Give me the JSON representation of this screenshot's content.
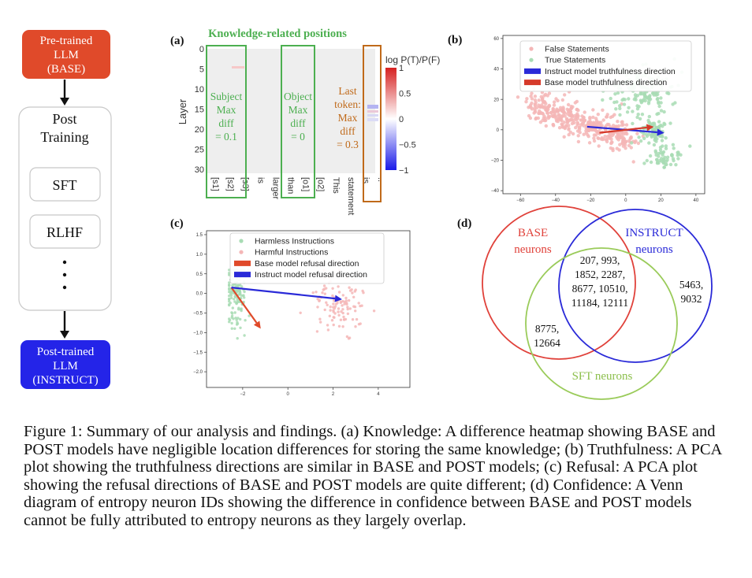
{
  "flow": {
    "pretrained": [
      "Pre-trained",
      "LLM",
      "(BASE)"
    ],
    "post_training": [
      "Post",
      "Training"
    ],
    "sft": "SFT",
    "rlhf": "RLHF",
    "posttrained": [
      "Post-trained",
      "LLM",
      "(INSTRUCT)"
    ],
    "colors": {
      "red": "#e04a2a",
      "blue": "#2424e8"
    }
  },
  "panel_a": {
    "label": "(a)",
    "title": "Knowledge-related positions",
    "ylabel": "Layer",
    "yticks": [
      "0",
      "5",
      "10",
      "15",
      "20",
      "25",
      "30"
    ],
    "xticks": [
      "[s1]",
      "[s2]",
      "[s3]",
      "is",
      "larger",
      "than",
      "[o1]",
      "[o2]",
      "This",
      "statement",
      "is",
      ".."
    ],
    "subject": [
      "Subject",
      "Max",
      "diff",
      "= 0.1"
    ],
    "object": [
      "Object",
      "Max",
      "diff",
      "= 0"
    ],
    "last": [
      "Last",
      "token:",
      "Max",
      "diff",
      "= 0.3"
    ],
    "colorbar_label": "log P(T)/P(F)",
    "colorbar_ticks": [
      "1",
      "0.5",
      "0",
      "−0.5",
      "−1"
    ],
    "colors": {
      "green": "#4caf50",
      "orange": "#c06a1a",
      "bg": "#eeeeee"
    }
  },
  "chart_data": [
    {
      "id": "b",
      "type": "scatter",
      "label": "(b)",
      "xticks": [
        "−60",
        "−40",
        "−20",
        "0",
        "20",
        "40"
      ],
      "yticks": [
        "60",
        "40",
        "20",
        "0",
        "−20",
        "−40"
      ],
      "xlim": [
        -70,
        45
      ],
      "ylim": [
        -42,
        62
      ],
      "legend": [
        "False Statements",
        "True Statements",
        "Instruct model truthfulness direction",
        "Base model truthfulness direction"
      ],
      "legend_position": "top-right",
      "clusters": [
        {
          "series": "False Statements",
          "color": "#f4b6b6",
          "center": [
            -25,
            5
          ],
          "spread": [
            18,
            12
          ],
          "n": 420
        },
        {
          "series": "True Statements",
          "color": "#a8dcb4",
          "center": [
            15,
            18
          ],
          "spread": [
            14,
            14
          ],
          "n": 300
        }
      ],
      "arrows": [
        {
          "series": "Instruct model truthfulness direction",
          "color": "#2a2ad8",
          "from": [
            -22,
            2
          ],
          "to": [
            22,
            -2
          ]
        },
        {
          "series": "Base model truthfulness direction",
          "color": "#d63a2a",
          "from": [
            -15,
            -2
          ],
          "to": [
            16,
            2
          ]
        }
      ]
    },
    {
      "id": "c",
      "type": "scatter",
      "label": "(c)",
      "xticks": [
        "−2",
        "0",
        "2",
        "4"
      ],
      "yticks": [
        "1.5",
        "1.0",
        "0.5",
        "0.0",
        "−0.5",
        "−1.0",
        "−1.5",
        "−2.0"
      ],
      "xlim": [
        -3.6,
        5.4
      ],
      "ylim": [
        -2.4,
        1.6
      ],
      "legend": [
        "Harmless Instructions",
        "Harmful Instructions",
        "Base model refusal direction",
        "Instruct model refusal direction"
      ],
      "legend_position": "top",
      "clusters": [
        {
          "series": "Harmless Instructions",
          "color": "#a8dcb4",
          "center": [
            -2.3,
            0.0
          ],
          "spread": [
            0.5,
            0.9
          ],
          "n": 150
        },
        {
          "series": "Harmful Instructions",
          "color": "#f4b6b6",
          "center": [
            2.3,
            -0.3
          ],
          "spread": [
            1.2,
            0.8
          ],
          "n": 110
        }
      ],
      "arrows": [
        {
          "series": "Base model refusal direction",
          "color": "#e04a2a",
          "from": [
            -2.5,
            0.15
          ],
          "to": [
            -1.2,
            -0.9
          ]
        },
        {
          "series": "Instruct model refusal direction",
          "color": "#2a2ad8",
          "from": [
            -2.5,
            0.15
          ],
          "to": [
            2.4,
            -0.15
          ]
        }
      ]
    }
  ],
  "panel_d": {
    "label": "(d)",
    "base": [
      "BASE",
      "neurons"
    ],
    "instruct": [
      "INSTRUCT",
      "neurons"
    ],
    "sft": "SFT neurons",
    "center": [
      "207, 993,",
      "1852, 2287,",
      "8677, 10510,",
      "11184, 12111"
    ],
    "instruct_only": [
      "5463,",
      "9032"
    ],
    "base_sft": [
      "8775,",
      "12664"
    ],
    "colors": {
      "base": "#e0413a",
      "instruct": "#2a2ad8",
      "sft": "#9acb5a"
    }
  },
  "caption": {
    "text": "Figure 1: Summary of our analysis and findings. (a) Knowledge: A difference heatmap showing BASE and POST models have negligible location differences for storing the same knowledge; (b) Truthfulness: A PCA plot showing the truthfulness directions are similar in BASE and POST models; (c) Refusal: A PCA plot showing the refusal directions of BASE and POST models are quite different; (d) Confidence: A Venn diagram of entropy neuron IDs showing the difference in confidence between BASE and POST models cannot be fully attributed to entropy neurons as they largely overlap."
  }
}
